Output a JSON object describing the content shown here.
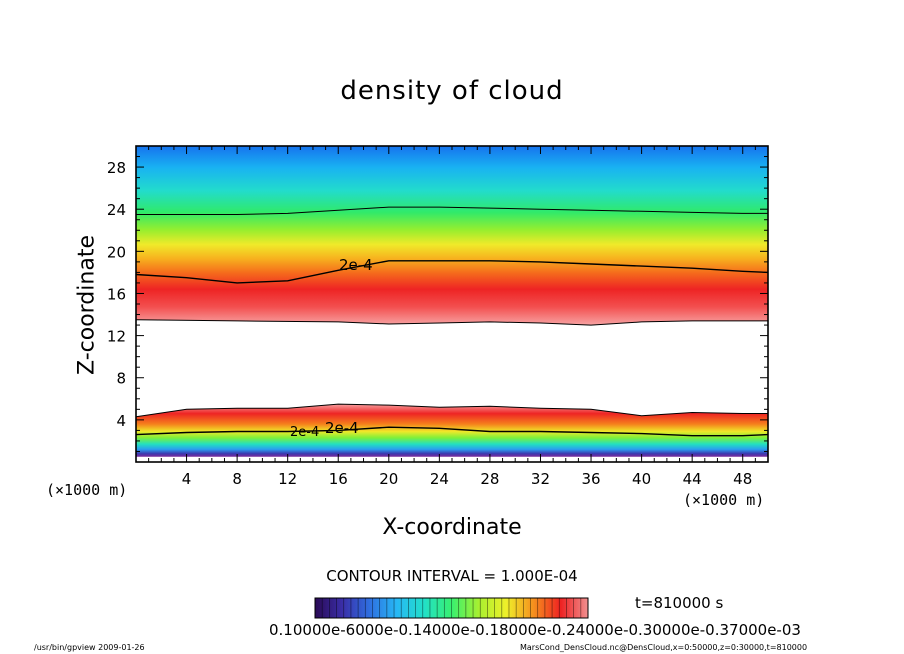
{
  "chart_data": {
    "type": "heatmap",
    "title": "density of cloud",
    "xlabel": "X-coordinate",
    "ylabel": "Z-coordinate",
    "x_unit_left": "(×1000 m)",
    "x_unit_right": "(×1000 m)",
    "xlim": [
      0,
      50
    ],
    "ylim": [
      0,
      30
    ],
    "xticks": [
      4,
      8,
      12,
      16,
      20,
      24,
      28,
      32,
      36,
      40,
      44,
      48
    ],
    "yticks": [
      4,
      8,
      12,
      16,
      20,
      24,
      28
    ],
    "contour_labels": [
      "2e-4",
      "2e-4",
      "2e-4"
    ],
    "upper_contour_2e-4": {
      "x": [
        0,
        4,
        8,
        12,
        16,
        20,
        24,
        28,
        32,
        36,
        40,
        44,
        48,
        50
      ],
      "z": [
        17.8,
        17.5,
        17.0,
        17.2,
        18.2,
        19.1,
        19.1,
        19.1,
        19.0,
        18.8,
        18.6,
        18.4,
        18.1,
        18.0
      ]
    },
    "upper_cloud_bottom": {
      "x": [
        0,
        8,
        16,
        20,
        24,
        28,
        32,
        36,
        40,
        44,
        48,
        50
      ],
      "z": [
        13.5,
        13.4,
        13.3,
        13.1,
        13.2,
        13.3,
        13.2,
        13.0,
        13.3,
        13.4,
        13.4,
        13.4
      ]
    },
    "upper_cloud_top": {
      "x": [
        0,
        4,
        8,
        12,
        16,
        20,
        24,
        28,
        32,
        36,
        40,
        44,
        48,
        50
      ],
      "z": [
        23.5,
        23.5,
        23.5,
        23.6,
        23.9,
        24.2,
        24.2,
        24.1,
        24.0,
        23.9,
        23.8,
        23.7,
        23.6,
        23.6
      ]
    },
    "lower_contour_2e-4": {
      "x": [
        0,
        4,
        8,
        12,
        16,
        20,
        24,
        28,
        32,
        36,
        40,
        44,
        48,
        50
      ],
      "z": [
        2.6,
        2.8,
        2.9,
        2.9,
        3.0,
        3.3,
        3.2,
        2.9,
        2.9,
        2.8,
        2.7,
        2.5,
        2.5,
        2.6
      ]
    },
    "lower_cloud_top": {
      "x": [
        0,
        4,
        8,
        12,
        16,
        20,
        24,
        28,
        32,
        36,
        40,
        44,
        48,
        50
      ],
      "z": [
        4.3,
        5.0,
        5.1,
        5.1,
        5.5,
        5.4,
        5.2,
        5.3,
        5.1,
        5.0,
        4.4,
        4.7,
        4.6,
        4.6
      ]
    },
    "lower_cloud_bottom_z": 0.5,
    "contour_interval": "CONTOUR INTERVAL = 1.000E-04",
    "colorbar_labels": "0.10000e-6000e-0.14000e-0.18000e-0.24000e-0.30000e-0.37000e-03",
    "colorbar_colors": [
      "#2a0a55",
      "#3a2ea8",
      "#2f6fe0",
      "#27b8f5",
      "#22e0c8",
      "#38f070",
      "#a8f030",
      "#eef02a",
      "#f5b020",
      "#f56a1e",
      "#ee2222",
      "#f09090"
    ],
    "colormap": "rainbow (blue-cyan-green-yellow-red)",
    "time": "t=810000 s"
  },
  "footer": {
    "left": "/usr/bin/gpview   2009-01-26",
    "right": "MarsCond_DensCloud.nc@DensCloud,x=0:50000,z=0:30000,t=810000"
  }
}
